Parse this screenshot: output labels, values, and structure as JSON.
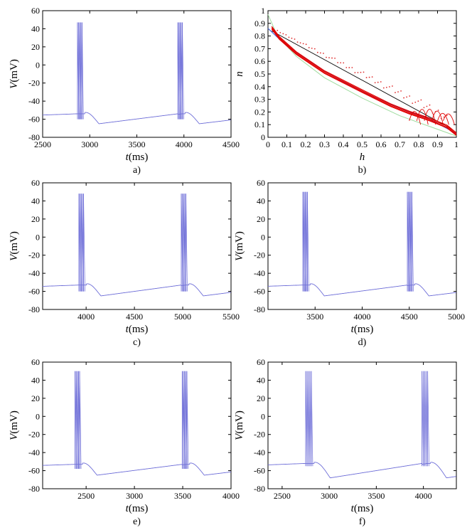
{
  "chart_data": [
    {
      "id": "a",
      "type": "line",
      "panel_label": "a)",
      "xlabel_italic": "t",
      "xlabel_unit": "(ms)",
      "ylabel_italic": "V",
      "ylabel_unit": "(mV)",
      "xlim": [
        2500,
        4500
      ],
      "ylim": [
        -80,
        60
      ],
      "xticks": [
        2500,
        3000,
        3500,
        4000,
        4500
      ],
      "yticks": [
        60,
        40,
        20,
        0,
        -20,
        -40,
        -60,
        -80
      ],
      "series_color": "#6f6fd8",
      "bursts": [
        {
          "start": 2870,
          "spikes": [
            2870,
            2882,
            2894,
            2906,
            2918
          ],
          "peak": 47,
          "trough": -60
        },
        {
          "start": 3935,
          "spikes": [
            3935,
            3947,
            3959,
            3971,
            3983
          ],
          "peak": 47,
          "trough": -60
        }
      ],
      "baseline": {
        "pre_start": -58,
        "pre_end": -54,
        "post_min": -65,
        "post_time_offset": 180
      },
      "end_value": -61
    },
    {
      "id": "b",
      "type": "phase",
      "panel_label": "b)",
      "xlabel_italic": "h",
      "ylabel_italic": "n",
      "xlim": [
        0,
        1
      ],
      "ylim": [
        0,
        1
      ],
      "xticks": [
        0,
        0.1,
        0.2,
        0.3,
        0.4,
        0.5,
        0.6,
        0.7,
        0.8,
        0.9,
        1
      ],
      "yticks": [
        1,
        0.9,
        0.8,
        0.7,
        0.6,
        0.5,
        0.4,
        0.3,
        0.2,
        0.1,
        0
      ],
      "black_line": [
        [
          0.02,
          0.84
        ],
        [
          0.97,
          0.07
        ]
      ],
      "blue_curve": [
        [
          0.0,
          0.86
        ],
        [
          0.05,
          0.79
        ],
        [
          0.15,
          0.67
        ],
        [
          0.3,
          0.52
        ],
        [
          0.5,
          0.36
        ],
        [
          0.7,
          0.23
        ],
        [
          0.85,
          0.15
        ],
        [
          1.0,
          0.03
        ]
      ],
      "green_curve": [
        [
          0.0,
          0.97
        ],
        [
          0.05,
          0.8
        ],
        [
          0.15,
          0.64
        ],
        [
          0.3,
          0.47
        ],
        [
          0.5,
          0.31
        ],
        [
          0.7,
          0.17
        ],
        [
          0.85,
          0.09
        ],
        [
          1.0,
          0.01
        ]
      ],
      "red_main": [
        [
          0.02,
          0.86
        ],
        [
          0.06,
          0.78
        ],
        [
          0.15,
          0.66
        ],
        [
          0.3,
          0.51
        ],
        [
          0.5,
          0.36
        ],
        [
          0.65,
          0.25
        ],
        [
          0.75,
          0.19
        ],
        [
          0.85,
          0.14
        ],
        [
          0.95,
          0.08
        ],
        [
          1.0,
          0.02
        ]
      ],
      "red_loop_h": [
        0.78,
        0.82,
        0.86,
        0.9,
        0.93,
        0.96
      ],
      "red_dots_band": {
        "h_start": 0.05,
        "h_end": 0.95,
        "count": 60
      }
    },
    {
      "id": "c",
      "type": "line",
      "panel_label": "c)",
      "xlabel_italic": "t",
      "xlabel_unit": "(ms)",
      "ylabel_italic": "V",
      "ylabel_unit": "(mV)",
      "xlim": [
        3550,
        5500
      ],
      "ylim": [
        -80,
        60
      ],
      "xticks": [
        4000,
        4500,
        5000,
        5500
      ],
      "yticks": [
        60,
        40,
        20,
        0,
        -20,
        -40,
        -60,
        -80
      ],
      "series_color": "#6f6fd8",
      "bursts": [
        {
          "start": 3925,
          "spikes": [
            3925,
            3937,
            3949,
            3961,
            3973
          ],
          "peak": 48,
          "trough": -60
        },
        {
          "start": 4985,
          "spikes": [
            4985,
            4997,
            5009,
            5021,
            5033
          ],
          "peak": 48,
          "trough": -60
        }
      ],
      "baseline": {
        "pre_start": -57,
        "pre_end": -53,
        "post_min": -65,
        "post_time_offset": 180
      },
      "end_value": -59
    },
    {
      "id": "d",
      "type": "line",
      "panel_label": "d)",
      "xlabel_italic": "t",
      "xlabel_unit": "(ms)",
      "ylabel_italic": "V",
      "ylabel_unit": "(mV)",
      "xlim": [
        3000,
        5000
      ],
      "ylim": [
        -80,
        60
      ],
      "xticks": [
        3500,
        4000,
        4500,
        5000
      ],
      "yticks": [
        60,
        40,
        20,
        0,
        -20,
        -40,
        -60,
        -80
      ],
      "series_color": "#6f6fd8",
      "bursts": [
        {
          "start": 3370,
          "spikes": [
            3370,
            3382,
            3394,
            3406,
            3418
          ],
          "peak": 50,
          "trough": -60
        },
        {
          "start": 4480,
          "spikes": [
            4480,
            4492,
            4504,
            4516,
            4528
          ],
          "peak": 50,
          "trough": -60
        }
      ],
      "baseline": {
        "pre_start": -57,
        "pre_end": -53,
        "post_min": -65,
        "post_time_offset": 180
      },
      "end_value": -60
    },
    {
      "id": "e",
      "type": "line",
      "panel_label": "e)",
      "xlabel_italic": "t",
      "xlabel_unit": "(ms)",
      "ylabel_italic": "V",
      "ylabel_unit": "(mV)",
      "xlim": [
        2050,
        4000
      ],
      "ylim": [
        -80,
        60
      ],
      "xticks": [
        2500,
        3000,
        3500,
        4000
      ],
      "yticks": [
        60,
        40,
        20,
        0,
        -20,
        -40,
        -60,
        -80
      ],
      "series_color": "#6f6fd8",
      "bursts": [
        {
          "start": 2385,
          "spikes": [
            2385,
            2397,
            2409,
            2421,
            2433
          ],
          "peak": 50,
          "trough": -58
        },
        {
          "start": 3495,
          "spikes": [
            3495,
            3507,
            3519,
            3531,
            3543
          ],
          "peak": 50,
          "trough": -58
        }
      ],
      "baseline": {
        "pre_start": -57,
        "pre_end": -53,
        "post_min": -65,
        "post_time_offset": 180
      },
      "end_value": -60
    },
    {
      "id": "f",
      "type": "line",
      "panel_label": "f)",
      "xlabel_italic": "t",
      "xlabel_unit": "(ms)",
      "ylabel_italic": "V",
      "ylabel_unit": "(mV)",
      "xlim": [
        2350,
        4350
      ],
      "ylim": [
        -80,
        60
      ],
      "xticks": [
        2500,
        3000,
        3500,
        4000
      ],
      "yticks": [
        60,
        40,
        20,
        0,
        -20,
        -40,
        -60,
        -80
      ],
      "series_color": "#6f6fd8",
      "bursts": [
        {
          "start": 2750,
          "spikes": [
            2750,
            2765,
            2780,
            2795,
            2810
          ],
          "peak": 50,
          "trough": -55
        },
        {
          "start": 3985,
          "spikes": [
            3985,
            4000,
            4015,
            4030,
            4045
          ],
          "peak": 50,
          "trough": -55
        }
      ],
      "baseline": {
        "pre_start": -57,
        "pre_end": -52,
        "post_min": -68,
        "post_time_offset": 200
      },
      "end_value": -65
    }
  ]
}
